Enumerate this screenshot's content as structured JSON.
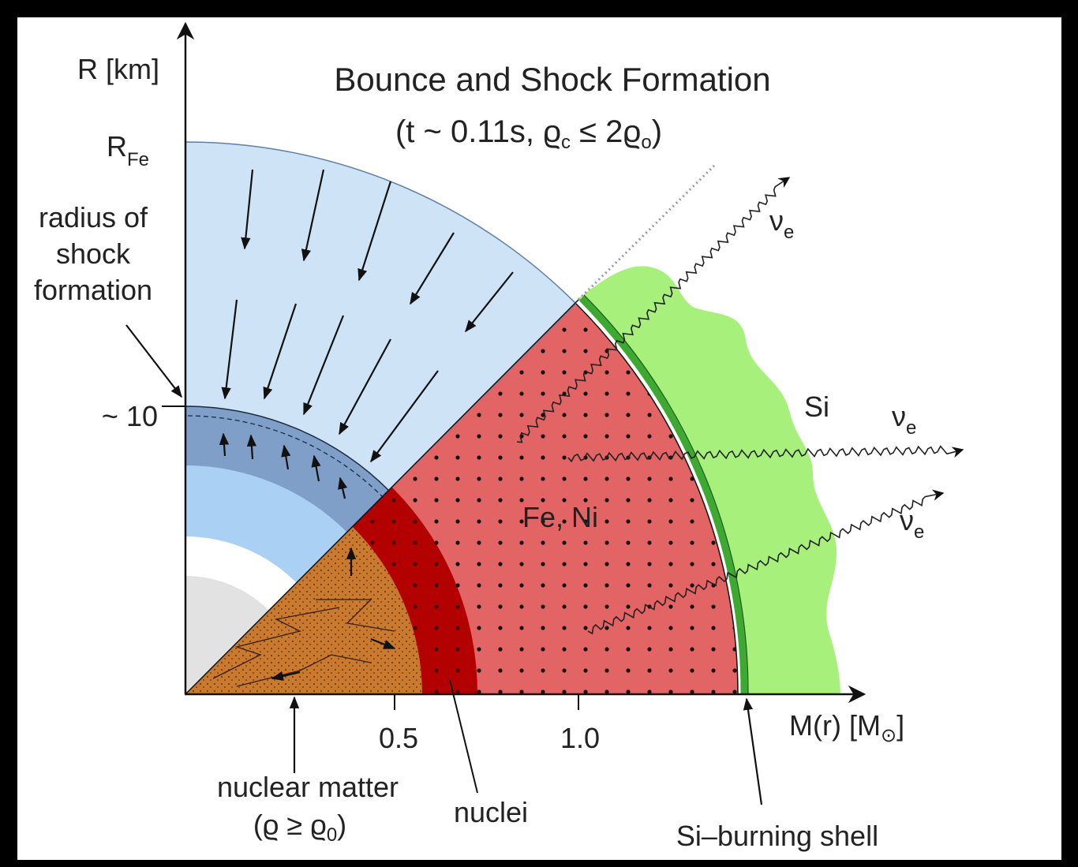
{
  "title": "Bounce and Shock Formation",
  "subtitle": [
    "(t ~ 0.11s, ϱ",
    "c",
    " ≤ 2ϱ",
    "o",
    ")"
  ],
  "axes": {
    "y_label": "R [km]",
    "x_label": [
      "M(r) [M",
      "⊙",
      "]"
    ],
    "y_marks": {
      "fe": [
        "R",
        "Fe"
      ],
      "shock": "~ 10"
    },
    "x_marks": [
      "0.5",
      "1.0"
    ]
  },
  "regions": {
    "fe_ni": "Fe, Ni",
    "si": "Si"
  },
  "neutrinos": [
    [
      "ν",
      "e"
    ],
    [
      "ν",
      "e"
    ],
    [
      "ν",
      "e"
    ]
  ],
  "annotations": {
    "shock_radius": [
      "radius of",
      "shock",
      "formation"
    ],
    "nuclear_matter": [
      "nuclear matter",
      "(ϱ ≥ ϱ",
      "0",
      ")"
    ],
    "nuclei": "nuclei",
    "si_shell": "Si–burning shell"
  }
}
